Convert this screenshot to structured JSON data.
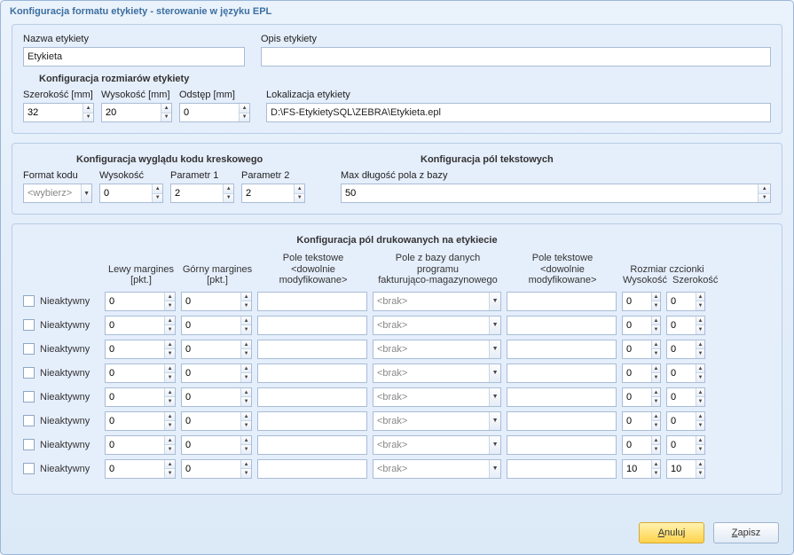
{
  "window": {
    "title": "Konfiguracja formatu etykiety - sterowanie w języku EPL"
  },
  "labels": {
    "nazwa_etykiety": "Nazwa etykiety",
    "opis_etykiety": "Opis etykiety",
    "konf_rozmiarow": "Konfiguracja rozmiarów etykiety",
    "szerokosc_mm": "Szerokość [mm]",
    "wysokosc_mm": "Wysokość [mm]",
    "odstep_mm": "Odstęp  [mm]",
    "lokalizacja": "Lokalizacja etykiety",
    "konf_kodu": "Konfiguracja wyglądu kodu kreskowego",
    "format_kodu": "Format kodu",
    "wysokosc": "Wysokość",
    "parametr1": "Parametr 1",
    "parametr2": "Parametr 2",
    "konf_pol_tekstowych": "Konfiguracja pól tekstowych",
    "max_dlugosc": "Max długość pola z bazy",
    "konf_pol_druk": "Konfiguracja pól drukowanych na etykiecie",
    "lewy_margines": "Lewy margines\n[pkt.]",
    "gorny_margines": "Górny margines\n[pkt.]",
    "pole_tekstowe_dowolne": "Pole tekstowe\n<dowolnie modyfikowane>",
    "pole_z_bazy": "Pole z bazy danych programu\nfakturująco-magazynowego",
    "rozmiar_czcionki": "Rozmiar czcionki",
    "rozmiar_wys": "Wysokość",
    "rozmiar_szer": "Szerokość",
    "nieaktywny": "Nieaktywny",
    "brak": "<brak>",
    "wybierz": "<wybierz>"
  },
  "values": {
    "nazwa_etykiety": "Etykieta",
    "opis_etykiety": "",
    "szerokosc": "32",
    "wysokosc": "20",
    "odstep": "0",
    "lokalizacja": "D:\\FS-EtykietySQL\\ZEBRA\\Etykieta.epl",
    "kod_wysokosc": "0",
    "parametr1": "2",
    "parametr2": "2",
    "max_dlugosc": "50"
  },
  "rows": [
    {
      "left": "0",
      "top": "0",
      "h": "0",
      "w": "0"
    },
    {
      "left": "0",
      "top": "0",
      "h": "0",
      "w": "0"
    },
    {
      "left": "0",
      "top": "0",
      "h": "0",
      "w": "0"
    },
    {
      "left": "0",
      "top": "0",
      "h": "0",
      "w": "0"
    },
    {
      "left": "0",
      "top": "0",
      "h": "0",
      "w": "0"
    },
    {
      "left": "0",
      "top": "0",
      "h": "0",
      "w": "0"
    },
    {
      "left": "0",
      "top": "0",
      "h": "0",
      "w": "0"
    },
    {
      "left": "0",
      "top": "0",
      "h": "10",
      "w": "10"
    }
  ],
  "buttons": {
    "anuluj": "Anuluj",
    "zapisz": "Zapisz"
  },
  "style": {
    "widths": {
      "checkbox_col": 14,
      "nieaktywny_col": 67,
      "margin_col": 80,
      "free_text_col": 124,
      "db_col": 145,
      "font_col": 44
    }
  }
}
